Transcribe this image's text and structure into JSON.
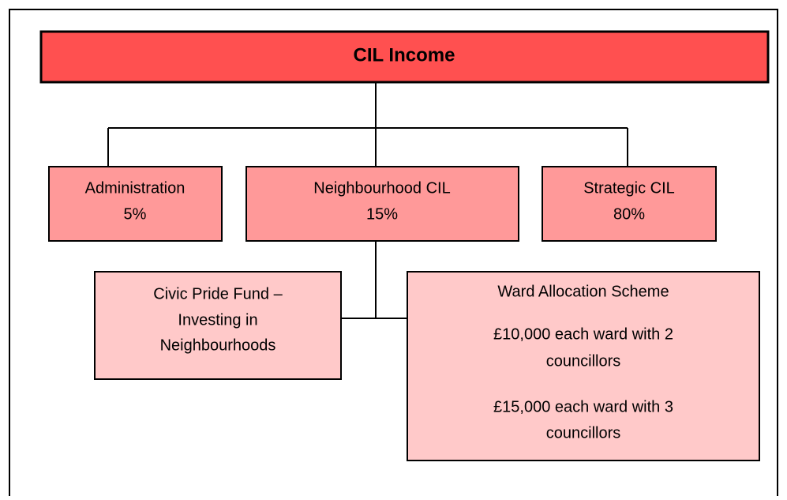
{
  "nodes": [
    {
      "lines": [
        "CIL Income"
      ]
    },
    {
      "lines": [
        "Administration",
        "5%"
      ]
    },
    {
      "lines": [
        "Neighbourhood CIL",
        "15%"
      ]
    },
    {
      "lines": [
        "Strategic CIL",
        "80%"
      ]
    },
    {
      "lines": [
        "Civic Pride Fund –",
        "Investing in",
        "Neighbourhoods"
      ]
    },
    {
      "lines": [
        "Ward Allocation Scheme",
        "£10,000 each ward with 2",
        "councillors",
        "£15,000 each ward with 3",
        "councillors"
      ]
    }
  ]
}
